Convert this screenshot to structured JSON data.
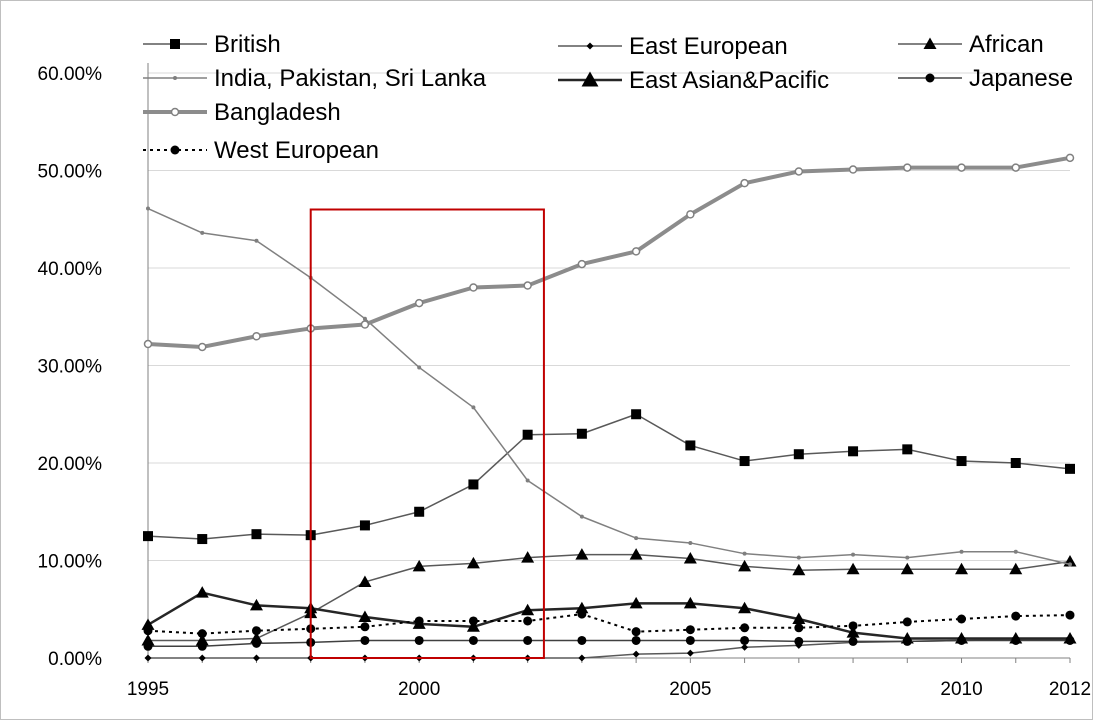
{
  "chart_data": {
    "type": "line",
    "title": "",
    "xlabel": "",
    "ylabel": "",
    "x": [
      1995,
      1996,
      1997,
      1998,
      1999,
      2000,
      2001,
      2002,
      2003,
      2004,
      2005,
      2006,
      2007,
      2008,
      2009,
      2010,
      2011,
      2012
    ],
    "x_tick_labels": [
      "1995",
      "2000",
      "2005",
      "2010",
      "2012"
    ],
    "y_tick_labels": [
      "0.00%",
      "10.00%",
      "20.00%",
      "30.00%",
      "40.00%",
      "50.00%",
      "60.00%"
    ],
    "ylim": [
      0,
      60
    ],
    "grid": "horizontal",
    "legend_position": "top",
    "highlight_box": {
      "x_from": 1998,
      "x_to": 2002.3,
      "y_from": 0,
      "y_to": 46
    },
    "series": [
      {
        "name": "British",
        "marker": "square",
        "color": "#595959",
        "values": [
          12.5,
          12.2,
          12.7,
          12.6,
          13.6,
          15.0,
          17.8,
          22.9,
          23.0,
          25.0,
          21.8,
          20.2,
          20.9,
          21.2,
          21.4,
          20.2,
          20.0,
          19.4
        ]
      },
      {
        "name": "East European",
        "marker": "diamond",
        "color": "#595959",
        "values": [
          0,
          0,
          0,
          0,
          0,
          0,
          0,
          0,
          0,
          0.4,
          0.5,
          1.1,
          1.3,
          1.6,
          1.7,
          1.8,
          1.9,
          1.9
        ]
      },
      {
        "name": "African",
        "marker": "triangle",
        "color": "#595959",
        "values": [
          1.8,
          1.8,
          2.0,
          4.6,
          7.8,
          9.4,
          9.7,
          10.3,
          10.6,
          10.6,
          10.2,
          9.4,
          9.0,
          9.1,
          9.1,
          9.1,
          9.1,
          9.9
        ]
      },
      {
        "name": "India, Pakistan, Sri Lanka",
        "marker": "dot",
        "color": "#7f7f7f",
        "values": [
          46.1,
          43.6,
          42.8,
          39.0,
          34.8,
          29.8,
          25.7,
          18.2,
          14.5,
          12.3,
          11.8,
          10.7,
          10.3,
          10.6,
          10.3,
          10.9,
          10.9,
          9.6
        ]
      },
      {
        "name": "East Asian&Pacific",
        "marker": "triangle",
        "color": "#404040",
        "values": [
          3.4,
          6.7,
          5.4,
          5.1,
          4.2,
          3.5,
          3.2,
          4.9,
          5.1,
          5.6,
          5.6,
          5.1,
          4.0,
          2.6,
          2.0,
          2.0,
          2.0,
          2.0
        ]
      },
      {
        "name": "Japanese",
        "marker": "circle",
        "color": "#404040",
        "values": [
          1.2,
          1.2,
          1.5,
          1.6,
          1.8,
          1.8,
          1.8,
          1.8,
          1.8,
          1.8,
          1.8,
          1.8,
          1.7,
          1.7,
          1.7,
          1.8,
          1.8,
          1.8
        ]
      },
      {
        "name": "Bangladesh",
        "marker": "ring",
        "color": "#808080",
        "values": [
          32.2,
          31.9,
          33.0,
          33.8,
          34.2,
          36.4,
          38.0,
          38.2,
          40.4,
          41.7,
          45.5,
          48.7,
          49.9,
          50.1,
          50.3,
          50.3,
          50.3,
          51.3
        ]
      },
      {
        "name": "West European",
        "marker": "circle",
        "dashed": true,
        "color": "#404040",
        "values": [
          2.8,
          2.5,
          2.8,
          3.0,
          3.2,
          3.8,
          3.8,
          3.8,
          4.5,
          2.7,
          2.9,
          3.1,
          3.1,
          3.3,
          3.7,
          4.0,
          4.3,
          4.4
        ]
      }
    ]
  }
}
